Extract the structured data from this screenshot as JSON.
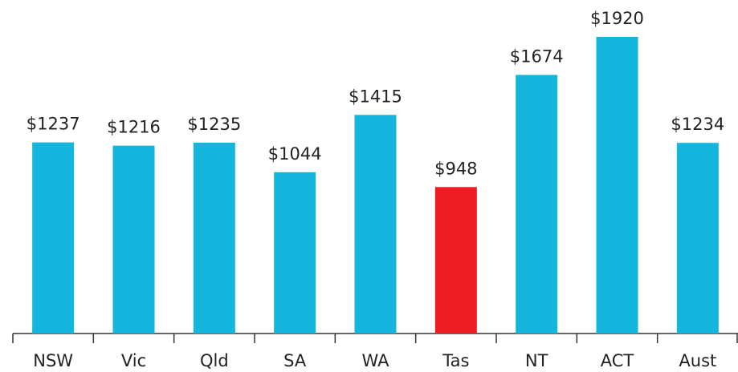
{
  "chart_data": {
    "type": "bar",
    "categories": [
      "NSW",
      "Vic",
      "Qld",
      "SA",
      "WA",
      "Tas",
      "NT",
      "ACT",
      "Aust"
    ],
    "values": [
      1237,
      1216,
      1235,
      1044,
      1415,
      948,
      1674,
      1920,
      1234
    ],
    "value_labels": [
      "$1237",
      "$1216",
      "$1235",
      "$1044",
      "$1415",
      "$948",
      "$1674",
      "$1920",
      "$1234"
    ],
    "colors": [
      "#14b6dd",
      "#14b6dd",
      "#14b6dd",
      "#14b6dd",
      "#14b6dd",
      "#ee1c25",
      "#14b6dd",
      "#14b6dd",
      "#14b6dd"
    ]
  }
}
